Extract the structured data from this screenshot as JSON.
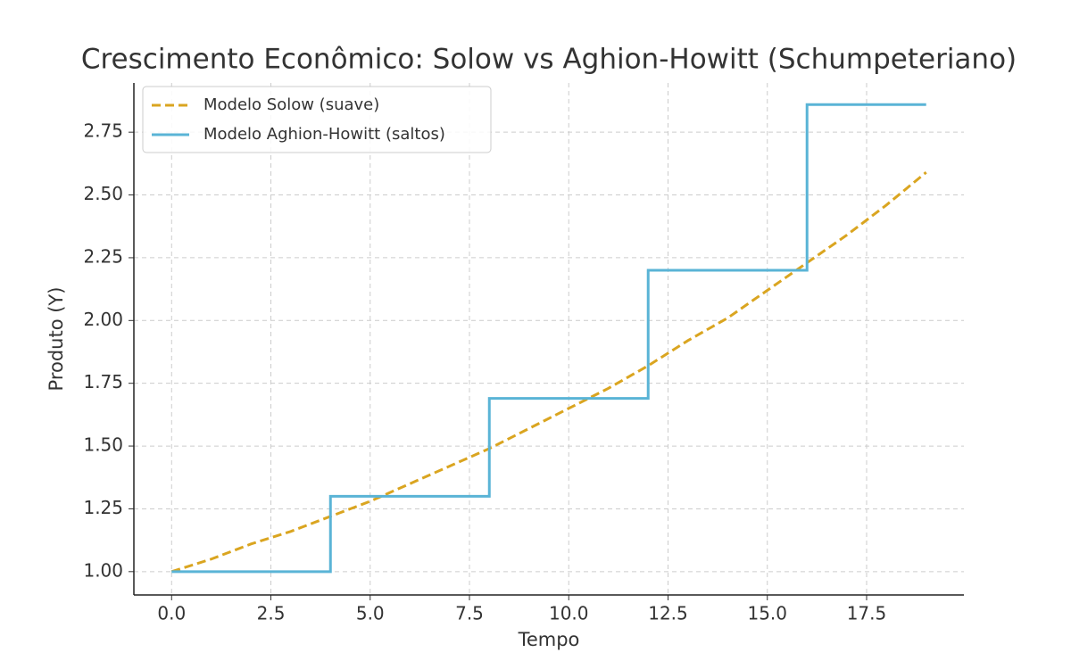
{
  "chart_data": {
    "type": "line",
    "title": "Crescimento Econômico: Solow vs Aghion-Howitt (Schumpeteriano)",
    "x_label": "Tempo",
    "y_label": "Produto (Y)",
    "series": [
      {
        "name": "Modelo Solow (suave)",
        "color": "#daa520",
        "linestyle": "dashed",
        "drawstyle": "default",
        "x": [
          0,
          1,
          2,
          3,
          4,
          5,
          6,
          7,
          8,
          9,
          10,
          11,
          12,
          13,
          14,
          15,
          16,
          17,
          18,
          19
        ],
        "values": [
          1.0,
          1.05,
          1.11,
          1.16,
          1.22,
          1.28,
          1.35,
          1.42,
          1.49,
          1.57,
          1.65,
          1.73,
          1.82,
          1.92,
          2.01,
          2.12,
          2.23,
          2.34,
          2.46,
          2.59
        ]
      },
      {
        "name": "Modelo Aghion-Howitt (saltos)",
        "color": "#5ab4d6",
        "linestyle": "solid",
        "drawstyle": "steps-post",
        "x": [
          0,
          4,
          8,
          12,
          16,
          19
        ],
        "values": [
          1.0,
          1.3,
          1.69,
          2.2,
          2.86,
          2.86
        ]
      }
    ],
    "xlim": [
      -0.95,
      19.95
    ],
    "xticks": [
      {
        "value": 0,
        "label": "0.0"
      },
      2.5,
      {
        "value": 5,
        "label": "5.0"
      },
      7.5,
      {
        "value": 10,
        "label": "10.0"
      },
      12.5,
      {
        "value": 15,
        "label": "15.0"
      },
      17.5
    ],
    "ylim": [
      0.907,
      2.946
    ],
    "yticks": [
      {
        "value": 1,
        "label": "1.00"
      },
      1.25,
      {
        "value": 1.5,
        "label": "1.50"
      },
      1.75,
      {
        "value": 2,
        "label": "2.00"
      },
      2.25,
      {
        "value": 2.5,
        "label": "2.50"
      },
      2.75
    ],
    "grid": true,
    "legend": "upper-left"
  }
}
